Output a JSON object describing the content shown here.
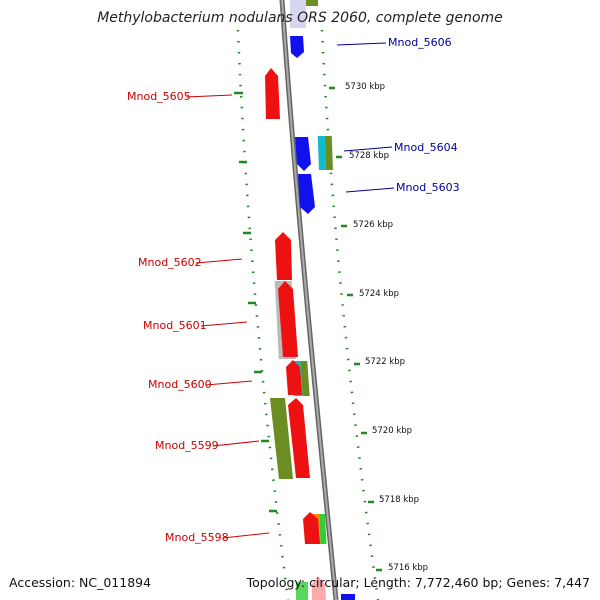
{
  "title": "Methylobacterium nodulans ORS 2060, complete genome",
  "footer": {
    "accession": "Accession: NC_011894",
    "topology": "Topology: circular; Length: 7,772,460 bp; Genes: 7,447"
  },
  "scale_labels": [
    "5730 kbp",
    "5728 kbp",
    "5726 kbp",
    "5724 kbp",
    "5722 kbp",
    "5720 kbp",
    "5718 kbp",
    "5716 kbp"
  ],
  "gene_labels": [
    {
      "text": "Mnod_5606",
      "color": "#000099"
    },
    {
      "text": "Mnod_5605",
      "color": "#cc0000"
    },
    {
      "text": "Mnod_5604",
      "color": "#000099"
    },
    {
      "text": "Mnod_5603",
      "color": "#000099"
    },
    {
      "text": "Mnod_5602",
      "color": "#cc0000"
    },
    {
      "text": "Mnod_5601",
      "color": "#cc0000"
    },
    {
      "text": "Mnod_5600",
      "color": "#cc0000"
    },
    {
      "text": "Mnod_5599",
      "color": "#cc0000"
    },
    {
      "text": "Mnod_5598",
      "color": "#cc0000"
    }
  ],
  "colors": {
    "backbone": "#888888",
    "forward_gene": "#ee1111",
    "reverse_gene": "#1111ee",
    "grey_gene": "#bbbbbb",
    "olive_gene": "#6b8e23",
    "cyan_gene": "#11bbcc",
    "orange_gene": "#ff8800",
    "green_gene": "#33cc33",
    "label_line_red": "#cc0000",
    "label_line_blue": "#000099",
    "dots": "#228822"
  }
}
